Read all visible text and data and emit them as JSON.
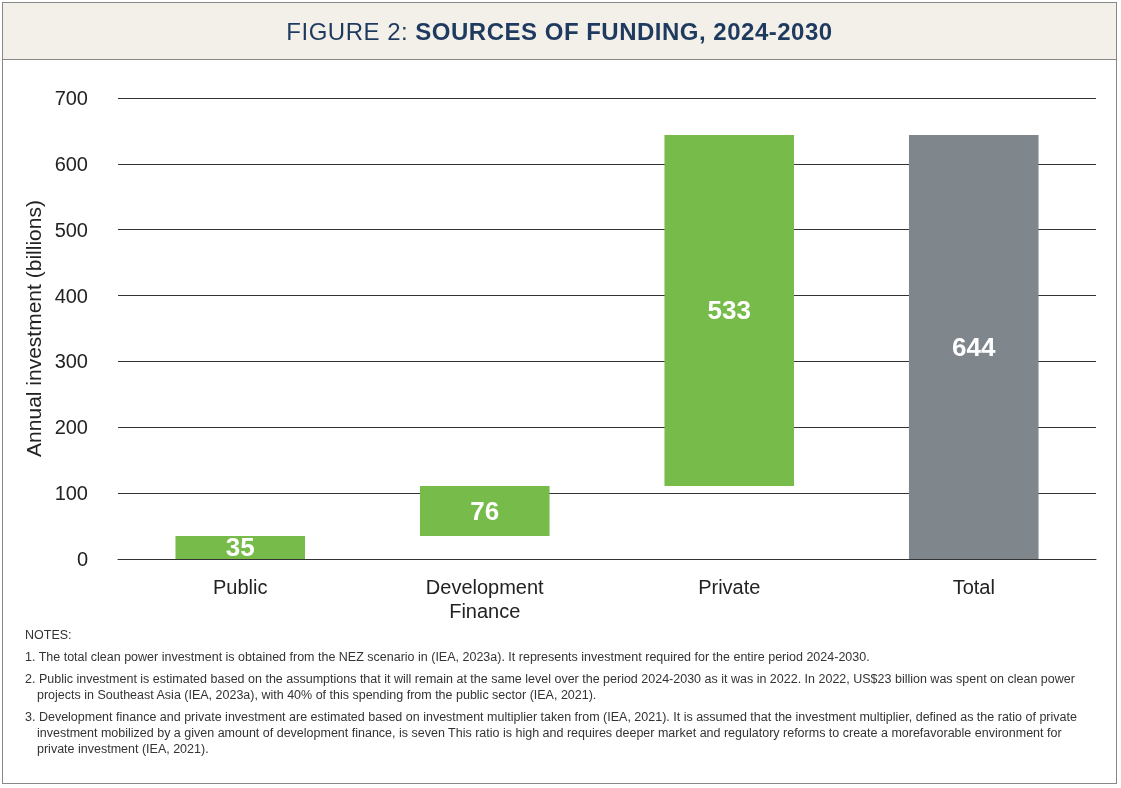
{
  "chart_data": {
    "type": "bar",
    "title": "FIGURE 2: SOURCES OF FUNDING, 2024-2030",
    "ylabel": "Annual investment (billions)",
    "categories": [
      "Public",
      "Development\nFinance",
      "Private",
      "Total"
    ],
    "values": [
      35,
      76,
      533,
      644
    ],
    "base": [
      0,
      35,
      111,
      0
    ],
    "colors": [
      "#77bc4b",
      "#77bc4b",
      "#77bc4b",
      "#7f868c"
    ],
    "ylim": [
      0,
      700
    ],
    "yticks": [
      0,
      100,
      200,
      300,
      400,
      500,
      600,
      700
    ],
    "grid": "y",
    "data_labels": true,
    "annotations": [
      "NOTES:",
      "1. The total clean power investment is obtained from the NEZ scenario in (IEA, 2023a). It represents investment required for the entire period 2024-2030.",
      "2. Public investment is estimated based on the assumptions that it will remain at the same level over the period 2024-2030 as it was in 2022. In 2022, US$23 billion was spent on clean power projects in Southeast Asia (IEA, 2023a), with 40% of this spending from the public sector (IEA, 2021).",
      "3. Development finance and private investment are estimated based on investment multiplier taken from (IEA, 2021). It is assumed that the investment multiplier, defined as the ratio of private investment mobilized by a given amount of development finance, is seven This ratio is high and requires deeper market and regulatory reforms to create a morefavorable environment for private investment (IEA, 2021)."
    ]
  }
}
